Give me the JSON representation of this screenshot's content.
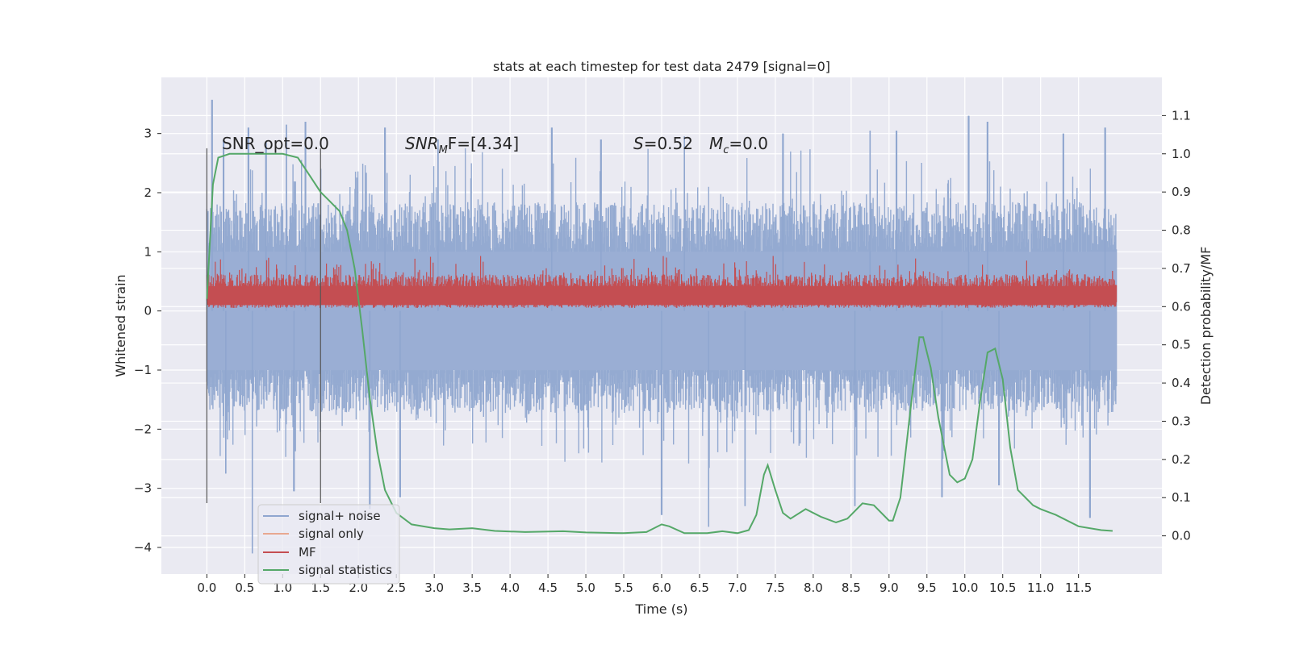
{
  "chart_data": {
    "type": "line",
    "title": "stats at each timestep for test data 2479 [signal=0]",
    "xlabel": "Time (s)",
    "ylabel_left": "Whitened strain",
    "ylabel_right": "Detection probability/MF",
    "xlim": [
      -0.6,
      12.6
    ],
    "ylim_left": [
      -4.45,
      3.95
    ],
    "ylim_right": [
      -0.1,
      1.2
    ],
    "xticks": [
      0.0,
      0.5,
      1.0,
      1.5,
      2.0,
      2.5,
      3.0,
      3.5,
      4.0,
      4.5,
      5.0,
      5.5,
      6.0,
      6.5,
      7.0,
      7.5,
      8.0,
      8.5,
      9.0,
      9.5,
      10.0,
      10.5,
      11.0,
      11.5
    ],
    "xtick_labels": [
      "0.0",
      "0.5",
      "1.0",
      "1.5",
      "2.0",
      "2.5",
      "3.0",
      "3.5",
      "4.0",
      "4.5",
      "5.0",
      "5.5",
      "6.0",
      "6.5",
      "7.0",
      "7.5",
      "8.0",
      "8.5",
      "9.0",
      "9.5",
      "10.0",
      "10.5",
      "11.0",
      "11.5"
    ],
    "yticks_left": [
      3,
      2,
      1,
      0,
      -1,
      -2,
      -3,
      -4
    ],
    "ytick_labels_left": [
      "3",
      "2",
      "1",
      "0",
      "−1",
      "−2",
      "−3",
      "−4"
    ],
    "yticks_right": [
      1.1,
      1.0,
      0.9,
      0.8,
      0.7,
      0.6,
      0.5,
      0.4,
      0.3,
      0.2,
      0.1,
      0.0
    ],
    "ytick_labels_right": [
      "1.1",
      "1.0",
      "0.9",
      "0.8",
      "0.7",
      "0.6",
      "0.5",
      "0.4",
      "0.3",
      "0.2",
      "0.1",
      "0.0"
    ],
    "grid": true,
    "legend_position": "lower-left",
    "legend": [
      {
        "name": "signal+ noise",
        "color": "#8fa6cf"
      },
      {
        "name": "signal only",
        "color": "#e8a890"
      },
      {
        "name": "MF",
        "color": "#c44e52"
      },
      {
        "name": "signal statistics",
        "color": "#55a868"
      }
    ],
    "annotations": {
      "snr_opt": "SNR_opt=0.0",
      "snr_mf_sym": "SNR",
      "snr_mf_sub": "M",
      "snr_mf_rest": "F=[4.34]",
      "s_sym": "S",
      "s_val": "=0.52",
      "mc_sym": "M",
      "mc_sub": "c",
      "mc_val": "=0.0"
    },
    "vlines": [
      0.0,
      1.5
    ],
    "vline_range_left": [
      -3.25,
      2.75
    ],
    "noise_series": {
      "name": "signal+ noise",
      "x_range": [
        0.0,
        12.0
      ],
      "typical_envelope": [
        -1.5,
        1.6
      ],
      "peaks_max": [
        [
          0.07,
          3.57
        ],
        [
          0.22,
          2.9
        ],
        [
          0.55,
          3.1
        ],
        [
          0.78,
          2.85
        ],
        [
          1.05,
          3.15
        ],
        [
          1.3,
          3.2
        ],
        [
          2.35,
          3.1
        ],
        [
          3.05,
          2.9
        ],
        [
          4.55,
          3.1
        ],
        [
          5.2,
          2.9
        ],
        [
          6.3,
          2.95
        ],
        [
          7.6,
          3.0
        ],
        [
          8.75,
          3.05
        ],
        [
          9.1,
          3.05
        ],
        [
          10.05,
          3.3
        ],
        [
          10.3,
          3.2
        ],
        [
          11.3,
          3.0
        ],
        [
          11.85,
          3.1
        ]
      ],
      "peaks_min": [
        [
          0.6,
          -4.1
        ],
        [
          0.25,
          -2.75
        ],
        [
          1.15,
          -3.05
        ],
        [
          2.15,
          -3.35
        ],
        [
          2.55,
          -3.15
        ],
        [
          6.0,
          -3.45
        ],
        [
          6.62,
          -3.65
        ],
        [
          7.1,
          -3.3
        ],
        [
          8.55,
          -3.3
        ],
        [
          9.7,
          -3.15
        ],
        [
          10.45,
          -2.95
        ],
        [
          11.65,
          -3.5
        ]
      ]
    },
    "mf_series": {
      "name": "MF",
      "axis": "left",
      "x_range": [
        0.0,
        12.0
      ],
      "baseline": 0.27,
      "typical_band": [
        0.05,
        0.6
      ],
      "peak_value": 0.93
    },
    "signal_statistics": {
      "name": "signal statistics",
      "axis": "right",
      "x": [
        0.0,
        0.08,
        0.15,
        0.3,
        0.5,
        1.0,
        1.2,
        1.3,
        1.4,
        1.5,
        1.6,
        1.75,
        1.85,
        1.95,
        2.05,
        2.15,
        2.25,
        2.35,
        2.5,
        2.7,
        3.0,
        3.2,
        3.5,
        3.8,
        4.2,
        4.7,
        5.0,
        5.5,
        5.8,
        6.0,
        6.1,
        6.3,
        6.6,
        6.8,
        7.0,
        7.15,
        7.25,
        7.35,
        7.4,
        7.5,
        7.6,
        7.7,
        7.9,
        8.1,
        8.3,
        8.45,
        8.65,
        8.8,
        9.0,
        9.05,
        9.15,
        9.3,
        9.4,
        9.45,
        9.55,
        9.65,
        9.8,
        9.9,
        10.0,
        10.1,
        10.2,
        10.3,
        10.4,
        10.5,
        10.6,
        10.7,
        10.9,
        11.0,
        11.2,
        11.5,
        11.8,
        11.95
      ],
      "y": [
        0.62,
        0.92,
        0.99,
        1.0,
        1.0,
        1.0,
        0.99,
        0.96,
        0.93,
        0.9,
        0.88,
        0.85,
        0.8,
        0.7,
        0.54,
        0.36,
        0.22,
        0.12,
        0.06,
        0.03,
        0.02,
        0.017,
        0.02,
        0.013,
        0.01,
        0.012,
        0.009,
        0.007,
        0.01,
        0.03,
        0.025,
        0.007,
        0.007,
        0.012,
        0.007,
        0.015,
        0.055,
        0.16,
        0.185,
        0.12,
        0.06,
        0.045,
        0.07,
        0.05,
        0.035,
        0.045,
        0.085,
        0.08,
        0.04,
        0.04,
        0.1,
        0.36,
        0.52,
        0.52,
        0.44,
        0.31,
        0.16,
        0.14,
        0.15,
        0.2,
        0.35,
        0.48,
        0.49,
        0.41,
        0.23,
        0.12,
        0.08,
        0.07,
        0.055,
        0.025,
        0.015,
        0.013
      ]
    }
  }
}
